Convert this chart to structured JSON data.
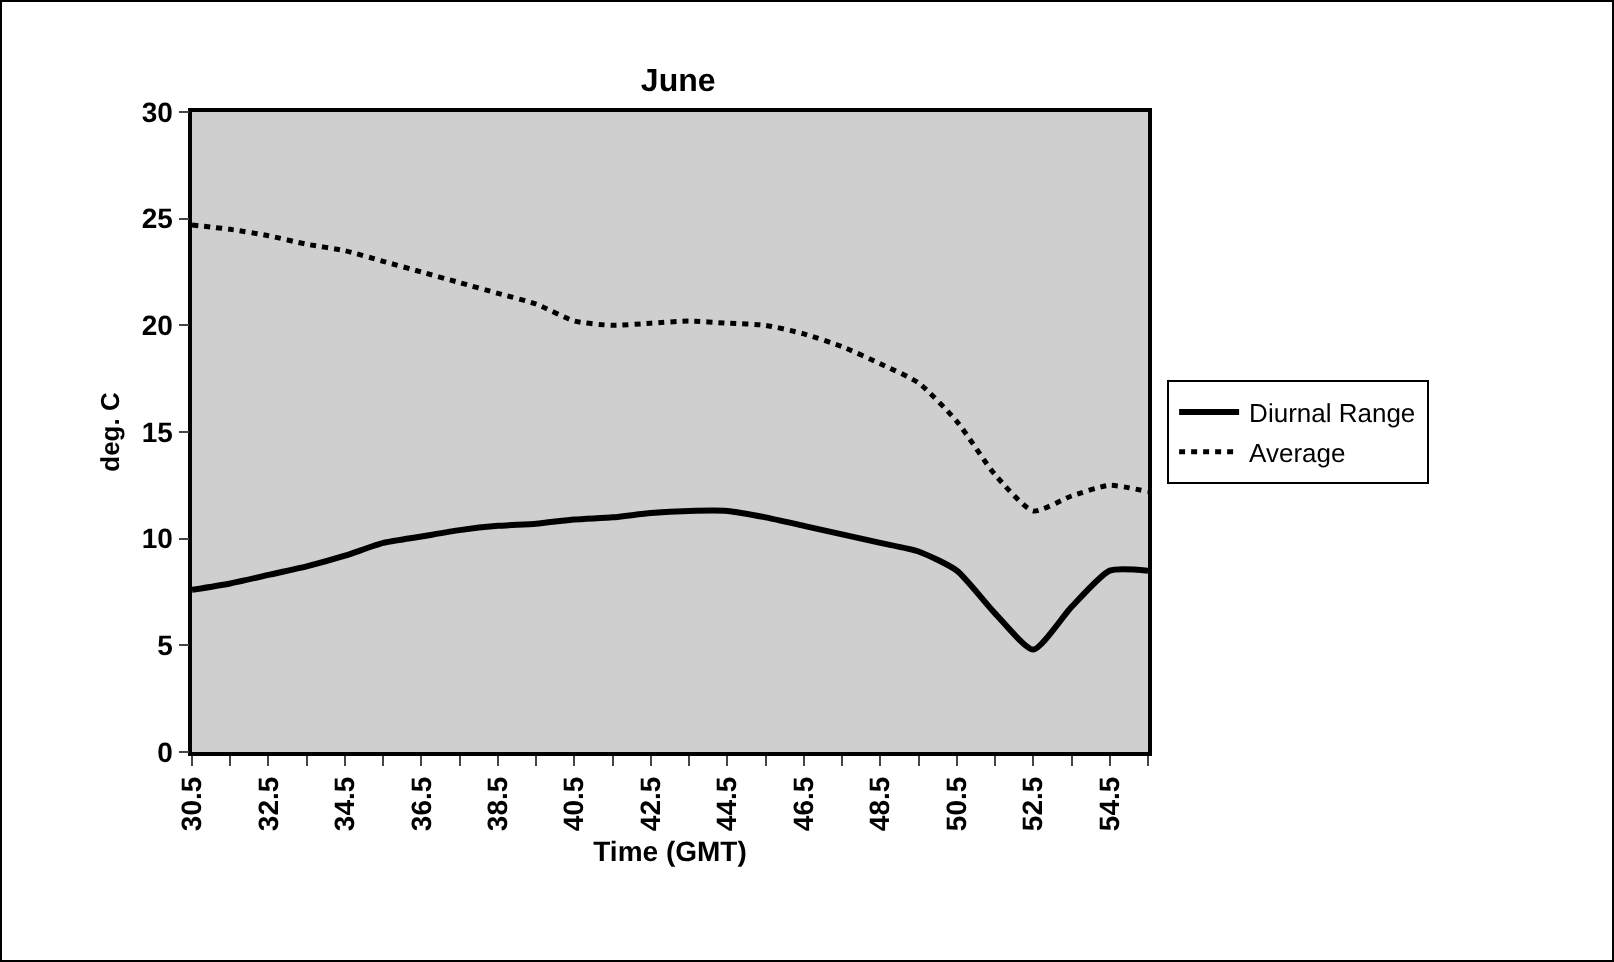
{
  "chart_data": {
    "type": "line",
    "title": "June",
    "xlabel": "Time (GMT)",
    "ylabel": "deg. C",
    "x": [
      30.5,
      31.5,
      32.5,
      33.5,
      34.5,
      35.5,
      36.5,
      37.5,
      38.5,
      39.5,
      40.5,
      41.5,
      42.5,
      43.5,
      44.5,
      45.5,
      46.5,
      47.5,
      48.5,
      49.5,
      50.5,
      51.5,
      52.5,
      53.5,
      54.5,
      55.5
    ],
    "series": [
      {
        "name": "Diurnal Range",
        "color": "#000000",
        "line_style": "solid",
        "values": [
          7.6,
          7.9,
          8.3,
          8.7,
          9.2,
          9.8,
          10.1,
          10.4,
          10.6,
          10.7,
          10.9,
          11.0,
          11.2,
          11.3,
          11.3,
          11.0,
          10.6,
          10.2,
          9.8,
          9.4,
          8.5,
          6.5,
          4.8,
          6.8,
          8.5,
          8.5
        ]
      },
      {
        "name": "Average",
        "color": "#000000",
        "line_style": "dotted",
        "values": [
          24.7,
          24.5,
          24.2,
          23.8,
          23.5,
          23.0,
          22.5,
          22.0,
          21.5,
          21.0,
          20.2,
          20.0,
          20.1,
          20.2,
          20.1,
          20.0,
          19.6,
          19.0,
          18.2,
          17.3,
          15.5,
          13.0,
          11.3,
          12.0,
          12.5,
          12.2
        ]
      }
    ],
    "xlim": [
      30.5,
      55.5
    ],
    "xticks": [
      30.5,
      {
        "value": 31.5,
        "label": null
      },
      32.5,
      {
        "value": 33.5,
        "label": null
      },
      34.5,
      {
        "value": 35.5,
        "label": null
      },
      36.5,
      {
        "value": 37.5,
        "label": null
      },
      38.5,
      {
        "value": 39.5,
        "label": null
      },
      40.5,
      {
        "value": 41.5,
        "label": null
      },
      42.5,
      {
        "value": 43.5,
        "label": null
      },
      44.5,
      {
        "value": 45.5,
        "label": null
      },
      46.5,
      {
        "value": 47.5,
        "label": null
      },
      48.5,
      {
        "value": 49.5,
        "label": null
      },
      50.5,
      {
        "value": 51.5,
        "label": null
      },
      52.5,
      {
        "value": 53.5,
        "label": null
      },
      54.5,
      {
        "value": 55.5,
        "label": null
      }
    ],
    "ylim": [
      0,
      30
    ],
    "yticks": [
      0,
      5,
      10,
      15,
      20,
      25,
      30
    ],
    "grid": false,
    "legend": "right",
    "marker": "none"
  }
}
